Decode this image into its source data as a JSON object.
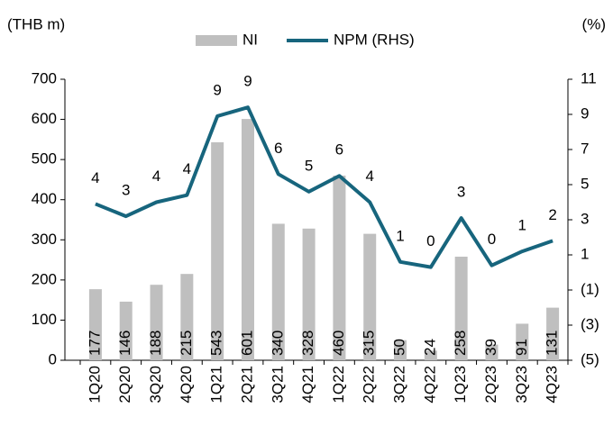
{
  "chart_data": {
    "type": "bar_line",
    "y_label": "(THB m)",
    "y2_label": "(%)",
    "categories": [
      "1Q20",
      "2Q20",
      "3Q20",
      "4Q20",
      "1Q21",
      "2Q21",
      "3Q21",
      "4Q21",
      "1Q22",
      "2Q22",
      "3Q22",
      "4Q22",
      "1Q23",
      "2Q23",
      "3Q23",
      "4Q23"
    ],
    "series": [
      {
        "name": "NI",
        "type": "bar",
        "color": "#bfbfbf",
        "axis": "y",
        "values": [
          177,
          146,
          188,
          215,
          543,
          601,
          340,
          328,
          460,
          315,
          50,
          24,
          258,
          39,
          91,
          131
        ]
      },
      {
        "name": "NPM (RHS)",
        "type": "line",
        "color": "#17657d",
        "axis": "y2",
        "values": [
          3.9,
          3.2,
          4.0,
          4.4,
          8.9,
          9.4,
          5.6,
          4.6,
          5.5,
          4.0,
          0.6,
          0.3,
          3.1,
          0.4,
          1.2,
          1.8
        ],
        "value_labels": [
          "4",
          "3",
          "4",
          "4",
          "9",
          "9",
          "6",
          "5",
          "6",
          "4",
          "1",
          "0",
          "3",
          "0",
          "1",
          "2"
        ]
      }
    ],
    "ylim": [
      0,
      700
    ],
    "yticks": [
      0,
      100,
      200,
      300,
      400,
      500,
      600,
      700
    ],
    "y2lim": [
      -5,
      11
    ],
    "y2ticks": [
      {
        "value": -5,
        "label": "(5)"
      },
      {
        "value": -3,
        "label": "(3)"
      },
      {
        "value": -1,
        "label": "(1)"
      },
      1,
      3,
      5,
      7,
      9,
      11
    ],
    "legend": "top",
    "grid": false
  }
}
